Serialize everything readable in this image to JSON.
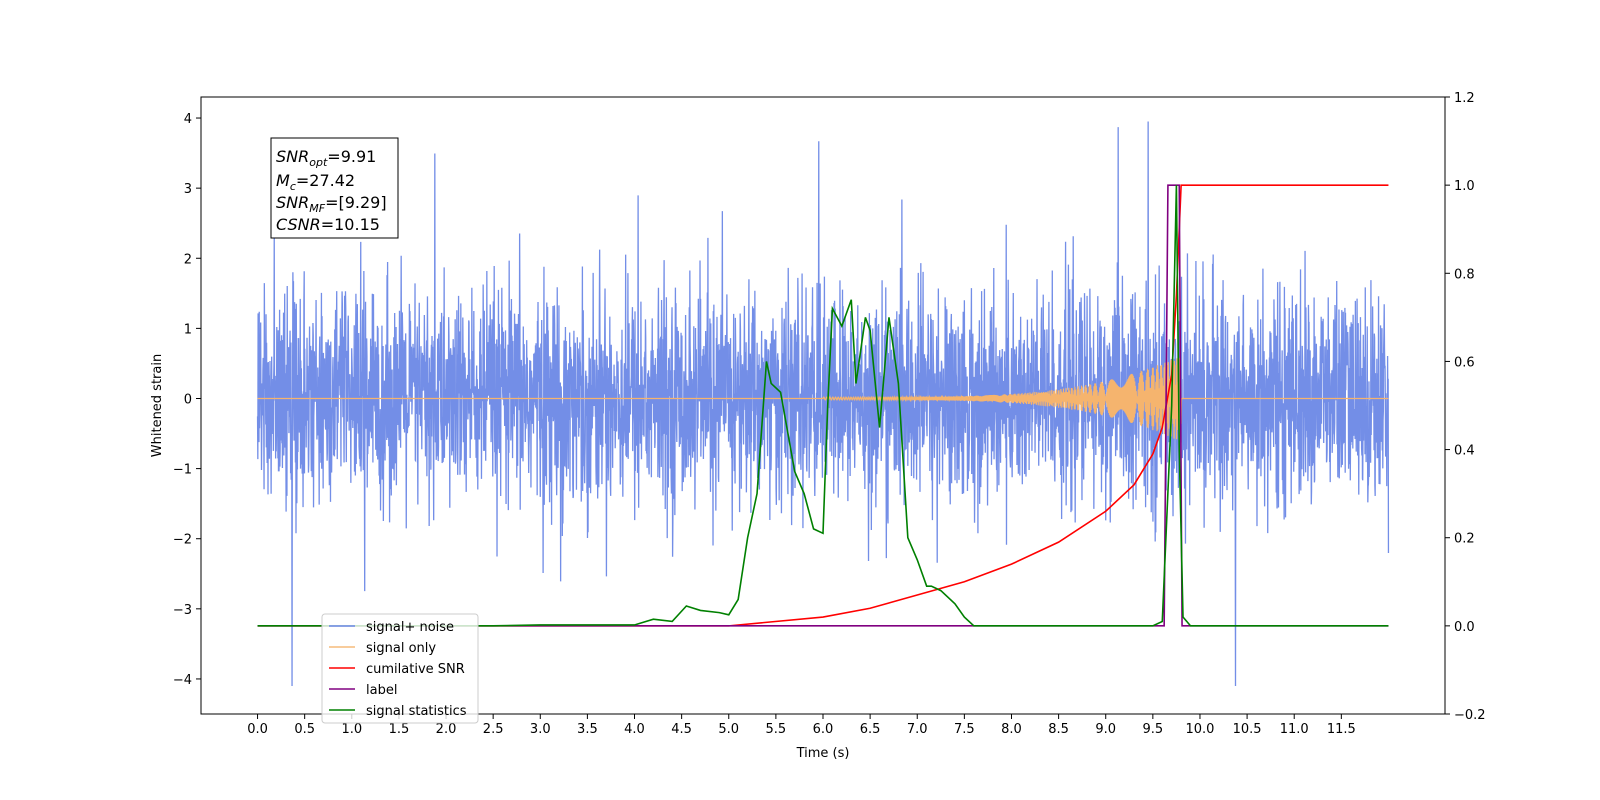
{
  "chart_data": {
    "type": "line",
    "title": "",
    "xlabel": "Time (s)",
    "ylabel": "Whitened strain",
    "y2label": "",
    "xlim": [
      -0.6,
      12.6
    ],
    "ylim": [
      -4.5,
      4.3
    ],
    "y2lim": [
      -0.2,
      1.2
    ],
    "x_ticks": [
      "0.0",
      "0.5",
      "1.0",
      "1.5",
      "2.0",
      "2.5",
      "3.0",
      "3.5",
      "4.0",
      "4.5",
      "5.0",
      "5.5",
      "6.0",
      "6.5",
      "7.0",
      "7.5",
      "8.0",
      "8.5",
      "9.0",
      "9.5",
      "10.0",
      "10.5",
      "11.0",
      "11.5"
    ],
    "y_ticks": [
      "4",
      "3",
      "2",
      "1",
      "0",
      "−1",
      "−2",
      "−3",
      "−4"
    ],
    "y2_ticks": [
      "1.2",
      "1.0",
      "0.8",
      "0.6",
      "0.4",
      "0.2",
      "0.0",
      "−0.2"
    ],
    "grid": false,
    "legend_position": "lower-left",
    "annotation": {
      "snr_opt_label": "SNR",
      "snr_opt_sub": "opt",
      "snr_opt_value": "=9.91",
      "mc_label": "M",
      "mc_sub": "c",
      "mc_value": "=27.42",
      "snr_mf_label": "SNR",
      "snr_mf_sub": "MF",
      "snr_mf_value": "=[9.29]",
      "csnr_label": "CSNR",
      "csnr_value": "=10.15"
    },
    "series": [
      {
        "name": "signal+ noise",
        "axis": "left",
        "color": "#6b88e6",
        "description_range": [
          0.0,
          12.0
        ],
        "amplitude_envelope": 1.6
      },
      {
        "name": "signal only",
        "axis": "left",
        "color": "#f5b46e",
        "chirp_start": 6.0,
        "chirp_end": 9.8
      },
      {
        "name": "cumilative SNR",
        "axis": "right",
        "color": "#ff0000",
        "x": [
          0.0,
          5.0,
          6.0,
          6.5,
          7.0,
          7.5,
          8.0,
          8.5,
          9.0,
          9.3,
          9.5,
          9.6,
          9.7,
          9.75,
          9.8,
          12.0
        ],
        "values": [
          0.0,
          0.0,
          0.02,
          0.04,
          0.07,
          0.1,
          0.14,
          0.19,
          0.26,
          0.32,
          0.39,
          0.45,
          0.57,
          0.75,
          1.0,
          1.0
        ]
      },
      {
        "name": "label",
        "axis": "right",
        "color": "#800080",
        "x": [
          0.0,
          9.62,
          9.66,
          9.78,
          9.81,
          12.0
        ],
        "values": [
          0.0,
          0.0,
          1.0,
          1.0,
          0.0,
          0.0
        ]
      },
      {
        "name": "signal statistics",
        "axis": "right",
        "color": "#008000",
        "x": [
          0.0,
          2.5,
          3.0,
          3.5,
          4.0,
          4.2,
          4.4,
          4.55,
          4.7,
          4.9,
          5.0,
          5.1,
          5.2,
          5.3,
          5.4,
          5.45,
          5.55,
          5.6,
          5.7,
          5.8,
          5.9,
          6.0,
          6.05,
          6.1,
          6.2,
          6.3,
          6.35,
          6.45,
          6.5,
          6.6,
          6.7,
          6.8,
          6.9,
          7.0,
          7.1,
          7.15,
          7.25,
          7.4,
          7.5,
          7.6,
          7.7,
          9.5,
          9.6,
          9.7,
          9.75,
          9.78,
          9.82,
          9.9,
          12.0
        ],
        "values": [
          0.0,
          0.0,
          0.002,
          0.002,
          0.002,
          0.015,
          0.01,
          0.045,
          0.035,
          0.03,
          0.025,
          0.06,
          0.2,
          0.3,
          0.6,
          0.55,
          0.53,
          0.47,
          0.35,
          0.3,
          0.22,
          0.21,
          0.5,
          0.72,
          0.68,
          0.74,
          0.55,
          0.7,
          0.67,
          0.45,
          0.7,
          0.55,
          0.2,
          0.15,
          0.09,
          0.09,
          0.08,
          0.05,
          0.02,
          0.0,
          0.0,
          0.0,
          0.01,
          0.5,
          1.0,
          0.4,
          0.02,
          0.0,
          0.0
        ]
      }
    ]
  }
}
